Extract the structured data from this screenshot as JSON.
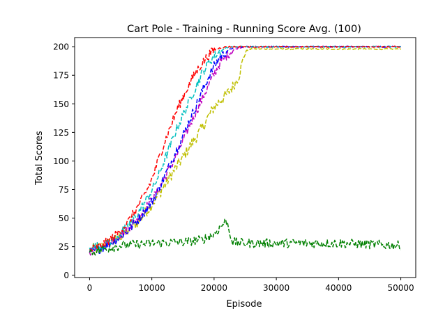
{
  "chart_data": {
    "type": "line",
    "title": "Cart Pole - Training - Running Score Avg. (100)",
    "xlabel": "Episode",
    "ylabel": "Total Scores",
    "xlim": [
      -2400,
      52400
    ],
    "ylim": [
      -2,
      208
    ],
    "x_ticks": [
      0,
      10000,
      20000,
      30000,
      40000,
      50000
    ],
    "y_ticks": [
      0,
      25,
      50,
      75,
      100,
      125,
      150,
      175,
      200
    ],
    "grid": false,
    "legend": null,
    "series": [
      {
        "color": "#bfbf00",
        "x": [
          0,
          2000,
          4000,
          6000,
          8000,
          10000,
          11000,
          12000,
          13000,
          14000,
          15000,
          16000,
          17000,
          18000,
          19000,
          20000,
          21000,
          22000,
          23000,
          24000,
          24500,
          25000,
          26000,
          30000,
          40000,
          50000
        ],
        "y": [
          22,
          25,
          30,
          38,
          48,
          62,
          70,
          78,
          87,
          95,
          103,
          112,
          120,
          128,
          138,
          147,
          153,
          158,
          165,
          175,
          185,
          196,
          198,
          198,
          198,
          198
        ],
        "noise": 5
      },
      {
        "color": "#bf00bf",
        "x": [
          0,
          2000,
          4000,
          6000,
          8000,
          10000,
          11000,
          12000,
          13000,
          14000,
          15000,
          16000,
          17000,
          18000,
          19000,
          20000,
          21000,
          22000,
          23000,
          24000,
          25000,
          30000,
          40000,
          50000
        ],
        "y": [
          20,
          25,
          32,
          40,
          52,
          66,
          74,
          85,
          95,
          105,
          118,
          130,
          142,
          153,
          165,
          176,
          186,
          192,
          197,
          199,
          200,
          200,
          200,
          200
        ],
        "noise": 4
      },
      {
        "color": "#0000ff",
        "x": [
          0,
          2000,
          4000,
          6000,
          8000,
          10000,
          11000,
          12000,
          13000,
          14000,
          15000,
          16000,
          17000,
          18000,
          19000,
          20000,
          21000,
          22000,
          23000,
          24000,
          30000,
          40000,
          50000
        ],
        "y": [
          20,
          24,
          30,
          38,
          50,
          64,
          74,
          86,
          98,
          110,
          122,
          135,
          147,
          160,
          172,
          183,
          191,
          196,
          199,
          200,
          200,
          200,
          200
        ],
        "noise": 4
      },
      {
        "color": "#00bfbf",
        "x": [
          0,
          2000,
          4000,
          6000,
          8000,
          10000,
          11000,
          12000,
          13000,
          14000,
          15000,
          16000,
          17000,
          18000,
          19000,
          20000,
          21000,
          22000,
          23000,
          30000,
          40000,
          50000
        ],
        "y": [
          24,
          26,
          32,
          42,
          56,
          74,
          86,
          100,
          114,
          128,
          140,
          152,
          164,
          176,
          185,
          192,
          196,
          199,
          200,
          200,
          200,
          200
        ],
        "noise": 4
      },
      {
        "color": "#ff0000",
        "x": [
          0,
          2000,
          4000,
          6000,
          8000,
          9000,
          10000,
          11000,
          12000,
          13000,
          14000,
          15000,
          16000,
          17000,
          18000,
          19000,
          20000,
          21000,
          22000,
          30000,
          40000,
          50000
        ],
        "y": [
          22,
          26,
          34,
          45,
          62,
          72,
          84,
          100,
          116,
          130,
          144,
          156,
          167,
          177,
          185,
          192,
          197,
          199,
          200,
          200,
          200,
          200
        ],
        "noise": 4
      },
      {
        "color": "#008000",
        "x": [
          0,
          5000,
          10000,
          15000,
          18000,
          20000,
          21000,
          22000,
          22500,
          23000,
          25000,
          30000,
          35000,
          40000,
          45000,
          50000
        ],
        "y": [
          20,
          26,
          28,
          29,
          31,
          36,
          42,
          48,
          38,
          29,
          28,
          28,
          28,
          28,
          27,
          26
        ],
        "noise": 4
      }
    ]
  }
}
